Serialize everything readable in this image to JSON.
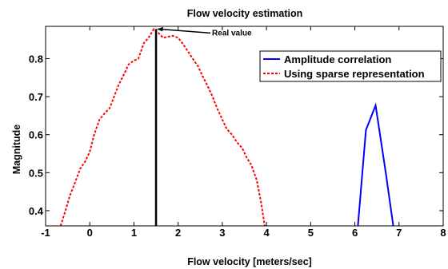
{
  "chart_data": {
    "type": "line",
    "title": "Flow velocity estimation",
    "xlabel": "Flow velocity [meters/sec]",
    "ylabel": "Magnitude",
    "xlim": [
      -1,
      8
    ],
    "ylim": [
      0.36,
      0.885
    ],
    "xticks": [
      -1,
      0,
      1,
      2,
      3,
      4,
      5,
      6,
      7,
      8
    ],
    "yticks": [
      0.4,
      0.5,
      0.6,
      0.7,
      0.8
    ],
    "grid": false,
    "legend_position": "top-right",
    "series": [
      {
        "name": "Amplitude correlation",
        "color": "#0000ff",
        "style": "solid",
        "x": [
          6.07,
          6.25,
          6.47,
          6.7,
          6.87
        ],
        "y": [
          0.36,
          0.612,
          0.677,
          0.5,
          0.36
        ]
      },
      {
        "name": "Using sparse representation",
        "color": "#ff0000",
        "style": "dashed",
        "x": [
          -0.66,
          -0.55,
          -0.45,
          -0.33,
          -0.22,
          -0.1,
          0.0,
          0.1,
          0.22,
          0.33,
          0.45,
          0.55,
          0.65,
          0.78,
          0.88,
          1.0,
          1.1,
          1.22,
          1.33,
          1.45,
          1.55,
          1.66,
          1.78,
          1.88,
          2.0,
          2.1,
          2.22,
          2.33,
          2.45,
          2.55,
          2.66,
          2.78,
          2.88,
          3.0,
          3.1,
          3.22,
          3.33,
          3.45,
          3.55,
          3.66,
          3.78,
          3.88,
          3.96
        ],
        "y": [
          0.36,
          0.4,
          0.44,
          0.475,
          0.51,
          0.53,
          0.555,
          0.6,
          0.64,
          0.655,
          0.67,
          0.7,
          0.73,
          0.76,
          0.785,
          0.795,
          0.8,
          0.84,
          0.855,
          0.878,
          0.868,
          0.855,
          0.858,
          0.86,
          0.855,
          0.84,
          0.82,
          0.8,
          0.78,
          0.755,
          0.73,
          0.7,
          0.67,
          0.64,
          0.615,
          0.6,
          0.58,
          0.565,
          0.54,
          0.52,
          0.48,
          0.42,
          0.36
        ]
      }
    ],
    "vertical_line": {
      "x": 1.5,
      "color": "#000000"
    },
    "annotation": {
      "text": "Real value",
      "x": 1.5,
      "y": 0.878
    }
  }
}
